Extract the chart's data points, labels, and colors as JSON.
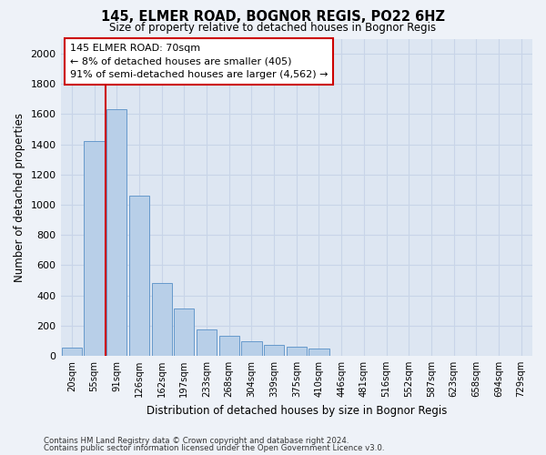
{
  "title": "145, ELMER ROAD, BOGNOR REGIS, PO22 6HZ",
  "subtitle": "Size of property relative to detached houses in Bognor Regis",
  "xlabel": "Distribution of detached houses by size in Bognor Regis",
  "ylabel": "Number of detached properties",
  "categories": [
    "20sqm",
    "55sqm",
    "91sqm",
    "126sqm",
    "162sqm",
    "197sqm",
    "233sqm",
    "268sqm",
    "304sqm",
    "339sqm",
    "375sqm",
    "410sqm",
    "446sqm",
    "481sqm",
    "516sqm",
    "552sqm",
    "587sqm",
    "623sqm",
    "658sqm",
    "694sqm",
    "729sqm"
  ],
  "values": [
    55,
    1420,
    1630,
    1060,
    480,
    310,
    175,
    130,
    95,
    70,
    60,
    50,
    0,
    0,
    0,
    0,
    0,
    0,
    0,
    0,
    0
  ],
  "bar_color": "#b8cfe8",
  "bar_edge_color": "#6699cc",
  "vline_color": "#cc0000",
  "vline_pos": 1.5,
  "annotation_text": "145 ELMER ROAD: 70sqm\n← 8% of detached houses are smaller (405)\n91% of semi-detached houses are larger (4,562) →",
  "annotation_box_facecolor": "#ffffff",
  "annotation_box_edgecolor": "#cc0000",
  "ylim": [
    0,
    2100
  ],
  "yticks": [
    0,
    200,
    400,
    600,
    800,
    1000,
    1200,
    1400,
    1600,
    1800,
    2000
  ],
  "grid_color": "#c8d4e8",
  "ax_facecolor": "#dde6f2",
  "fig_facecolor": "#eef2f8",
  "footer1": "Contains HM Land Registry data © Crown copyright and database right 2024.",
  "footer2": "Contains public sector information licensed under the Open Government Licence v3.0."
}
